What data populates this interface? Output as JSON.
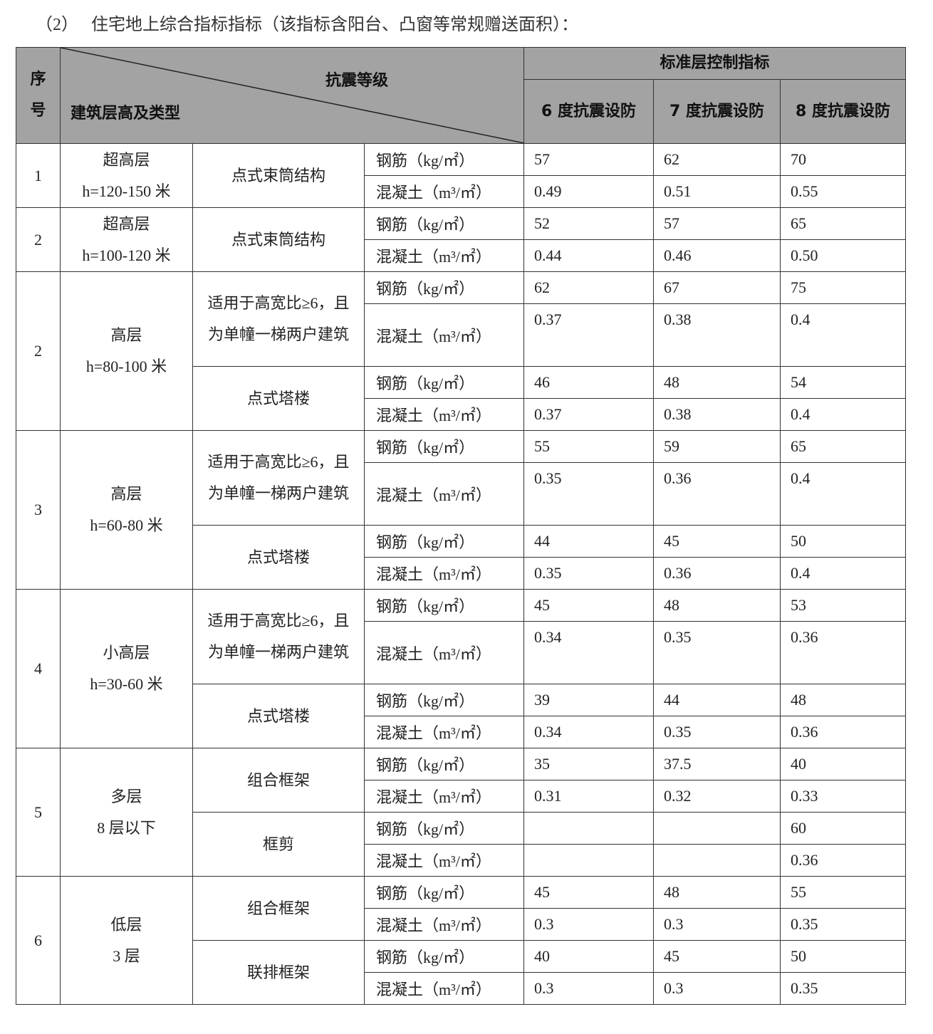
{
  "caption": "（2）   住宅地上综合指标指标（该指标含阳台、凸窗等常规赠送面积）：",
  "header": {
    "seq": "序号",
    "seq_line1": "序",
    "seq_line2": "号",
    "seismic_grade": "抗震等级",
    "building_type": "建筑层高及类型",
    "standard_floor": "标准层控制指标",
    "col6": "6 度抗震设防",
    "col7": "7 度抗震设防",
    "col8": "8 度抗震设防"
  },
  "groups": [
    {
      "seq": "1",
      "type1": "超高层",
      "type2": "h=120-150 米",
      "subs": [
        {
          "structure": "点式束筒结构",
          "rows": [
            {
              "material": "钢筋（kg/㎡）",
              "values": [
                "57",
                "62",
                "70"
              ]
            },
            {
              "material": "混凝土（m³/㎡）",
              "values": [
                "0.49",
                "0.51",
                "0.55"
              ]
            }
          ]
        }
      ]
    },
    {
      "seq": "2",
      "type1": "超高层",
      "type2": "h=100-120 米",
      "subs": [
        {
          "structure": "点式束筒结构",
          "rows": [
            {
              "material": "钢筋（kg/㎡）",
              "values": [
                "52",
                "57",
                "65"
              ]
            },
            {
              "material": "混凝土（m³/㎡）",
              "values": [
                "0.44",
                "0.46",
                "0.50"
              ]
            }
          ]
        }
      ]
    },
    {
      "seq": "2",
      "type1": "高层",
      "type2": "h=80-100 米",
      "subs": [
        {
          "structure": "适用于高宽比≥6，且为单幢一梯两户建筑",
          "tall": true,
          "rows": [
            {
              "material": "钢筋（kg/㎡）",
              "values": [
                "62",
                "67",
                "75"
              ]
            },
            {
              "material": "混凝土（m³/㎡）",
              "values": [
                "0.37",
                "0.38",
                "0.4"
              ]
            }
          ]
        },
        {
          "structure": "点式塔楼",
          "rows": [
            {
              "material": "钢筋（kg/㎡）",
              "values": [
                "46",
                "48",
                "54"
              ]
            },
            {
              "material": "混凝土（m³/㎡）",
              "values": [
                "0.37",
                "0.38",
                "0.4"
              ]
            }
          ]
        }
      ]
    },
    {
      "seq": "3",
      "type1": "高层",
      "type2": "h=60-80 米",
      "subs": [
        {
          "structure": "适用于高宽比≥6，且为单幢一梯两户建筑",
          "tall": true,
          "rows": [
            {
              "material": "钢筋（kg/㎡）",
              "values": [
                "55",
                "59",
                "65"
              ]
            },
            {
              "material": "混凝土（m³/㎡）",
              "values": [
                "0.35",
                "0.36",
                "0.4"
              ]
            }
          ]
        },
        {
          "structure": "点式塔楼",
          "rows": [
            {
              "material": "钢筋（kg/㎡）",
              "values": [
                "44",
                "45",
                "50"
              ]
            },
            {
              "material": "混凝土（m³/㎡）",
              "values": [
                "0.35",
                "0.36",
                "0.4"
              ]
            }
          ]
        }
      ]
    },
    {
      "seq": "4",
      "type1": "小高层",
      "type2": "h=30-60 米",
      "subs": [
        {
          "structure": "适用于高宽比≥6，且为单幢一梯两户建筑",
          "tall": true,
          "rows": [
            {
              "material": "钢筋（kg/㎡）",
              "values": [
                "45",
                "48",
                "53"
              ]
            },
            {
              "material": "混凝土（m³/㎡）",
              "values": [
                "0.34",
                "0.35",
                "0.36"
              ]
            }
          ]
        },
        {
          "structure": "点式塔楼",
          "rows": [
            {
              "material": "钢筋（kg/㎡）",
              "values": [
                "39",
                "44",
                "48"
              ]
            },
            {
              "material": "混凝土（m³/㎡）",
              "values": [
                "0.34",
                "0.35",
                "0.36"
              ]
            }
          ]
        }
      ]
    },
    {
      "seq": "5",
      "type1": "多层",
      "type2": "8 层以下",
      "subs": [
        {
          "structure": "组合框架",
          "rows": [
            {
              "material": "钢筋（kg/㎡）",
              "values": [
                "35",
                "37.5",
                "40"
              ]
            },
            {
              "material": "混凝土（m³/㎡）",
              "values": [
                "0.31",
                "0.32",
                "0.33"
              ]
            }
          ]
        },
        {
          "structure": "框剪",
          "rows": [
            {
              "material": "钢筋（kg/㎡）",
              "values": [
                "",
                "",
                "60"
              ]
            },
            {
              "material": "混凝土（m³/㎡）",
              "values": [
                "",
                "",
                "0.36"
              ]
            }
          ]
        }
      ]
    },
    {
      "seq": "6",
      "type1": "低层",
      "type2": "3 层",
      "subs": [
        {
          "structure": "组合框架",
          "rows": [
            {
              "material": "钢筋（kg/㎡）",
              "values": [
                "45",
                "48",
                "55"
              ]
            },
            {
              "material": "混凝土（m³/㎡）",
              "values": [
                "0.3",
                "0.3",
                "0.35"
              ]
            }
          ]
        },
        {
          "structure": "联排框架",
          "rows": [
            {
              "material": "钢筋（kg/㎡）",
              "values": [
                "40",
                "45",
                "50"
              ]
            },
            {
              "material": "混凝土（m³/㎡）",
              "values": [
                "0.3",
                "0.3",
                "0.35"
              ]
            }
          ]
        }
      ]
    }
  ]
}
